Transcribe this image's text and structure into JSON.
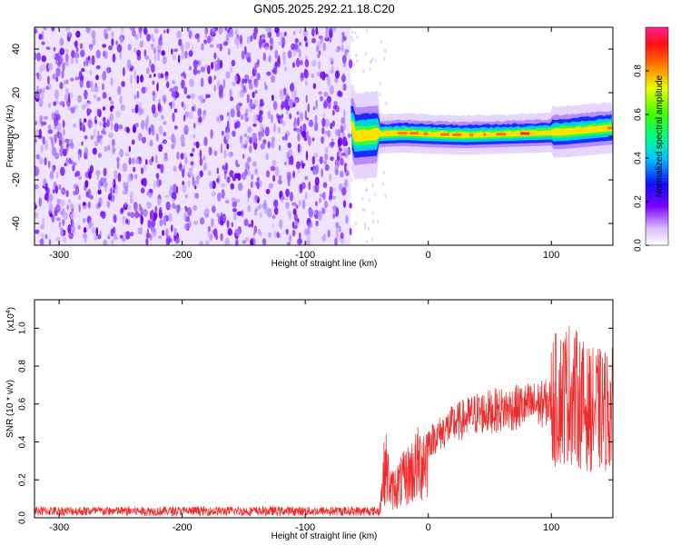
{
  "title": "GN05.2025.292.21.18.C20",
  "chart_data": [
    {
      "type": "heatmap",
      "name": "spectrogram",
      "xlabel": "Height of straight line (km)",
      "ylabel": "Frequency (Hz)",
      "xlim": [
        -320,
        150
      ],
      "ylim": [
        -50,
        50
      ],
      "xticks": [
        -300,
        -200,
        -100,
        0,
        100
      ],
      "yticks": [
        -40,
        -20,
        0,
        20,
        40
      ],
      "noise_region_x": [
        -320,
        -63
      ],
      "signal_x_start": -63,
      "signal_trace": [
        {
          "x": -60,
          "y": 0
        },
        {
          "x": -40,
          "y": 1
        },
        {
          "x": -20,
          "y": 1.5
        },
        {
          "x": 0,
          "y": 1
        },
        {
          "x": 30,
          "y": 0.5
        },
        {
          "x": 60,
          "y": 1
        },
        {
          "x": 90,
          "y": 1.5
        },
        {
          "x": 110,
          "y": 2
        },
        {
          "x": 150,
          "y": 4
        }
      ],
      "colorbar": {
        "label": "Normalized spectral amplitude",
        "ticks": [
          "0.0",
          "0.2",
          "0.4",
          "0.6",
          "0.8"
        ],
        "tick_values": [
          0.0,
          0.2,
          0.4,
          0.6,
          0.8
        ],
        "range": [
          0,
          1
        ]
      }
    },
    {
      "type": "line",
      "name": "snr",
      "xlabel": "Height of straight line (km)",
      "ylabel": "SNR (10 * v/v)",
      "scale_note_base": "(x10",
      "scale_note_exp": "4",
      "scale_note_end": ")",
      "xlim": [
        -320,
        150
      ],
      "ylim": [
        0,
        1.15
      ],
      "xticks": [
        -300,
        -200,
        -100,
        0,
        100
      ],
      "yticks": [
        "0.0",
        "0.2",
        "0.4",
        "0.6",
        "0.8",
        "1.0"
      ],
      "ytick_values": [
        0.0,
        0.2,
        0.4,
        0.6,
        0.8,
        1.0
      ],
      "color": "#ee2b2b",
      "envelope": [
        {
          "x": -320,
          "y": 0.04
        },
        {
          "x": -40,
          "y": 0.04
        },
        {
          "x": -35,
          "y": 0.35
        },
        {
          "x": -30,
          "y": 0.18
        },
        {
          "x": -20,
          "y": 0.25
        },
        {
          "x": 0,
          "y": 0.42
        },
        {
          "x": 20,
          "y": 0.52
        },
        {
          "x": 40,
          "y": 0.58
        },
        {
          "x": 60,
          "y": 0.6
        },
        {
          "x": 80,
          "y": 0.62
        },
        {
          "x": 100,
          "y": 0.64
        },
        {
          "x": 115,
          "y": 0.7
        },
        {
          "x": 130,
          "y": 0.6
        },
        {
          "x": 150,
          "y": 0.6
        }
      ]
    }
  ]
}
